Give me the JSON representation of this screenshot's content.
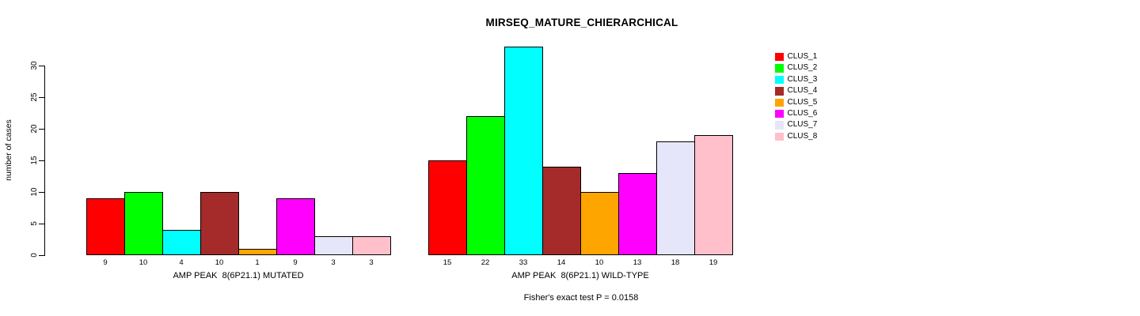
{
  "chart_data": {
    "type": "bar",
    "title": "MIRSEQ_MATURE_CHIERARCHICAL",
    "ylabel": "number of cases",
    "ylim": [
      0,
      33
    ],
    "yticks": [
      0,
      5,
      10,
      15,
      20,
      25,
      30
    ],
    "grid": false,
    "legend_position": "right",
    "categories": [
      "CLUS_1",
      "CLUS_2",
      "CLUS_3",
      "CLUS_4",
      "CLUS_5",
      "CLUS_6",
      "CLUS_7",
      "CLUS_8"
    ],
    "colors": [
      "#FF0000",
      "#00FF00",
      "#00FFFF",
      "#A52A2A",
      "#FFA500",
      "#FF00FF",
      "#E6E6FA",
      "#FFC0CB"
    ],
    "groups": [
      {
        "label": "AMP PEAK  8(6P21.1) MUTATED",
        "values": [
          9,
          10,
          4,
          10,
          1,
          9,
          3,
          3
        ]
      },
      {
        "label": "AMP PEAK  8(6P21.1) WILD-TYPE",
        "values": [
          15,
          22,
          33,
          14,
          10,
          13,
          18,
          19
        ]
      }
    ],
    "annotation": "Fisher's exact test P = 0.0158"
  }
}
